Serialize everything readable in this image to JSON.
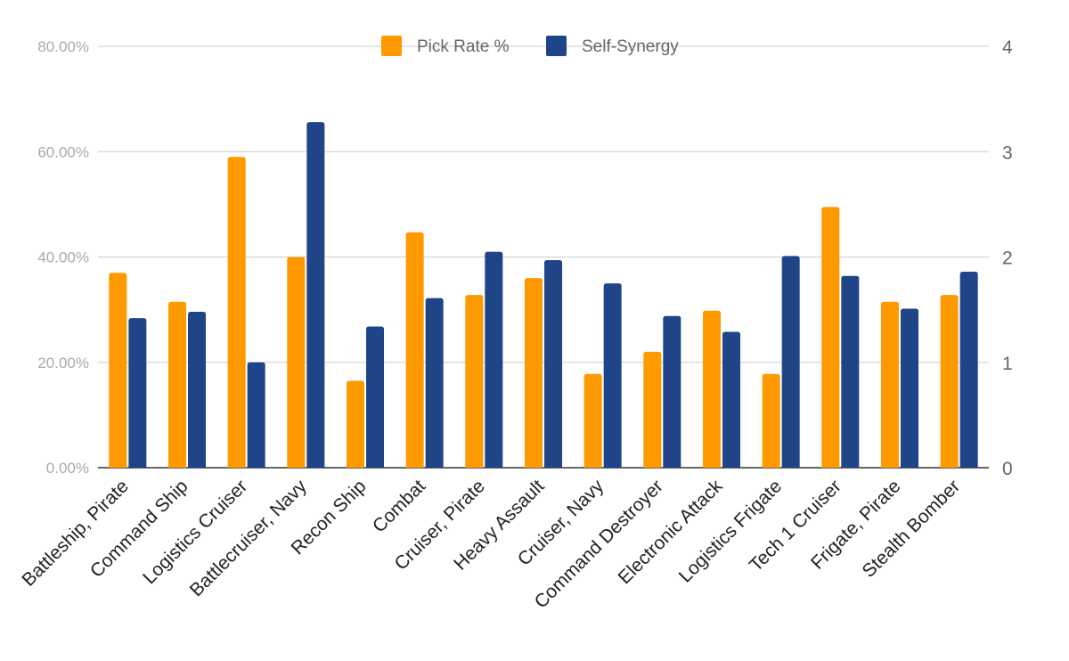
{
  "chart_data": {
    "type": "bar",
    "categories": [
      "Battleship, Pirate",
      "Command Ship",
      "Logistics Cruiser",
      "Battlecruiser, Navy",
      "Recon Ship",
      "Combat",
      "Cruiser, Pirate",
      "Heavy Assault",
      "Cruiser, Navy",
      "Command Destroyer",
      "Electronic Attack",
      "Logistics Frigate",
      "Tech 1 Cruiser",
      "Frigate, Pirate",
      "Stealth Bomber"
    ],
    "series": [
      {
        "name": "Pick Rate %",
        "axis": "left",
        "color": "#ff9900",
        "values": [
          0.37,
          0.315,
          0.59,
          0.4,
          0.165,
          0.447,
          0.328,
          0.36,
          0.178,
          0.22,
          0.298,
          0.178,
          0.495,
          0.315,
          0.328
        ]
      },
      {
        "name": "Self-Synergy",
        "axis": "right",
        "color": "#1f4488",
        "values": [
          1.42,
          1.48,
          1.0,
          3.28,
          1.34,
          1.61,
          2.05,
          1.97,
          1.75,
          1.44,
          1.29,
          2.01,
          1.82,
          1.51,
          1.86
        ]
      }
    ],
    "left_axis": {
      "ylim": [
        0,
        0.8
      ],
      "ticks": [
        0,
        0.2,
        0.4,
        0.6,
        0.8
      ],
      "tick_labels": [
        "0.00%",
        "20.00%",
        "40.00%",
        "60.00%",
        "80.00%"
      ]
    },
    "right_axis": {
      "ylim": [
        0,
        4
      ],
      "ticks": [
        0,
        1,
        2,
        3,
        4
      ],
      "tick_labels": [
        "0",
        "1",
        "2",
        "3",
        "4"
      ]
    },
    "title": "",
    "xlabel": "",
    "ylabel": "",
    "grid": true,
    "legend_position": "top-center"
  }
}
